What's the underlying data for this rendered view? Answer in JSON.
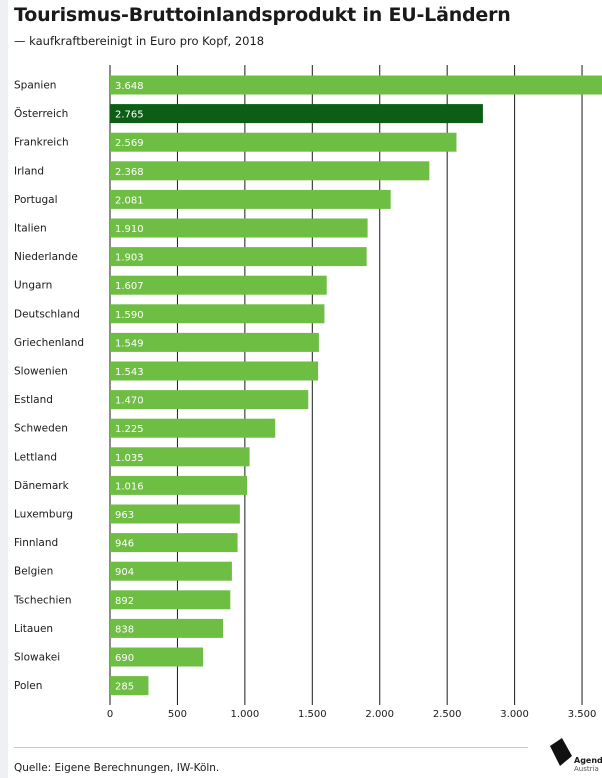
{
  "title": "Tourismus-Bruttoinlandsprodukt in EU-Ländern",
  "subtitle": "— kaufkraftbereinigt in Euro pro Kopf, 2018",
  "source": "Quelle: Eigene Berechnungen, IW-Köln.",
  "logo": {
    "line1": "Agenda",
    "line2": "Austria"
  },
  "colors": {
    "bar": "#6fbe44",
    "highlight": "#0b5e14",
    "grid": "#1a1a1a"
  },
  "chart_data": {
    "type": "bar",
    "orientation": "horizontal",
    "categories": [
      "Spanien",
      "Österreich",
      "Frankreich",
      "Irland",
      "Portugal",
      "Italien",
      "Niederlande",
      "Ungarn",
      "Deutschland",
      "Griechenland",
      "Slowenien",
      "Estland",
      "Schweden",
      "Lettland",
      "Dänemark",
      "Luxemburg",
      "Finnland",
      "Belgien",
      "Tschechien",
      "Litauen",
      "Slowakei",
      "Polen"
    ],
    "values": [
      3648,
      2765,
      2569,
      2368,
      2081,
      1910,
      1903,
      1607,
      1590,
      1549,
      1543,
      1470,
      1225,
      1035,
      1016,
      963,
      946,
      904,
      892,
      838,
      690,
      285
    ],
    "value_labels": [
      "3.648",
      "2.765",
      "2.569",
      "2.368",
      "2.081",
      "1.910",
      "1.903",
      "1.607",
      "1.590",
      "1.549",
      "1.543",
      "1.470",
      "1.225",
      "1.035",
      "1.016",
      "963",
      "946",
      "904",
      "892",
      "838",
      "690",
      "285"
    ],
    "highlight": "Österreich",
    "xticks": [
      0,
      500,
      1000,
      1500,
      2000,
      2500,
      3000,
      3500
    ],
    "xtick_labels": [
      "0",
      "500",
      "1.000",
      "1.500",
      "2.000",
      "2.500",
      "3.000",
      "3.500"
    ],
    "xlim": [
      0,
      3648
    ],
    "grid": true,
    "xlabel": "",
    "ylabel": ""
  }
}
